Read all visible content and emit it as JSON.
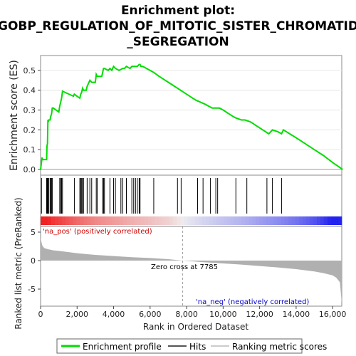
{
  "title_line1": "Enrichment plot:",
  "title_line2": "GOBP_REGULATION_OF_MITOTIC_SISTER_CHROMATID",
  "title_line3": "_SEGREGATION",
  "es_ylabel": "Enrichment score (ES)",
  "rank_ylabel": "Ranked list metric (PreRanked)",
  "xlabel": "Rank in Ordered Dataset",
  "pos_label": "'na_pos' (positively correlated)",
  "neg_label": "'na_neg' (negatively correlated)",
  "zero_cross_label": "Zero cross at 7785",
  "legend": {
    "enrichment": "Enrichment profile",
    "hits": "Hits",
    "ranking": "Ranking metric scores"
  },
  "colors": {
    "enrichment_line": "#00dd00",
    "hits": "#000000",
    "metric_fill": "#b0b0b0",
    "pos_text": "#cc0000",
    "neg_text": "#0000cc"
  },
  "chart_data": {
    "type": "line",
    "x_ticks": [
      "0",
      "2,000",
      "4,000",
      "6,000",
      "8,000",
      "10,000",
      "12,000",
      "14,000",
      "16,000"
    ],
    "x_tick_values": [
      0,
      2000,
      4000,
      6000,
      8000,
      10000,
      12000,
      14000,
      16000
    ],
    "xlim": [
      0,
      16500
    ],
    "es_ylim": [
      0,
      0.55
    ],
    "es_y_ticks": [
      "0.0",
      "0.1",
      "0.2",
      "0.3",
      "0.4",
      "0.5"
    ],
    "es_y_tick_values": [
      0.0,
      0.1,
      0.2,
      0.3,
      0.4,
      0.5
    ],
    "metric_ylim": [
      -8,
      6
    ],
    "metric_y_ticks": [
      "5",
      "0",
      "-5"
    ],
    "metric_y_tick_values": [
      5,
      0,
      -5
    ],
    "zero_cross": 7785,
    "enrichment_profile": {
      "x": [
        0,
        80,
        100,
        330,
        350,
        380,
        400,
        420,
        440,
        520,
        560,
        600,
        640,
        700,
        1000,
        1050,
        1100,
        1150,
        1200,
        1800,
        1850,
        2150,
        2200,
        2250,
        2300,
        2350,
        2500,
        2550,
        2700,
        2800,
        3000,
        3050,
        3100,
        3350,
        3400,
        3450,
        3500,
        3700,
        3800,
        3900,
        4000,
        4100,
        4300,
        4500,
        4600,
        4700,
        4900,
        5000,
        5100,
        5200,
        5300,
        5400,
        5450,
        5500,
        5600,
        5800,
        6000,
        6200,
        6500,
        7000,
        7500,
        8000,
        8500,
        9000,
        9400,
        9600,
        9800,
        10000,
        10500,
        10700,
        11000,
        11200,
        11500,
        12000,
        12500,
        12700,
        13000,
        13200,
        13300,
        14000,
        14500,
        15000,
        15500,
        16000,
        16550
      ],
      "y": [
        0.0,
        0.06,
        0.05,
        0.05,
        0.12,
        0.13,
        0.25,
        0.24,
        0.25,
        0.25,
        0.27,
        0.28,
        0.31,
        0.31,
        0.29,
        0.32,
        0.34,
        0.36,
        0.395,
        0.37,
        0.38,
        0.36,
        0.38,
        0.39,
        0.41,
        0.4,
        0.4,
        0.42,
        0.45,
        0.44,
        0.44,
        0.48,
        0.47,
        0.47,
        0.49,
        0.51,
        0.51,
        0.5,
        0.51,
        0.5,
        0.52,
        0.51,
        0.5,
        0.51,
        0.51,
        0.52,
        0.51,
        0.52,
        0.52,
        0.52,
        0.52,
        0.53,
        0.53,
        0.52,
        0.52,
        0.51,
        0.5,
        0.49,
        0.47,
        0.44,
        0.41,
        0.38,
        0.35,
        0.33,
        0.31,
        0.31,
        0.31,
        0.3,
        0.27,
        0.26,
        0.25,
        0.25,
        0.24,
        0.21,
        0.18,
        0.2,
        0.19,
        0.18,
        0.2,
        0.16,
        0.13,
        0.1,
        0.07,
        0.035,
        0.0
      ]
    },
    "hits": [
      50,
      330,
      350,
      380,
      400,
      420,
      440,
      520,
      560,
      600,
      640,
      1050,
      1100,
      1150,
      1200,
      1850,
      2150,
      2200,
      2250,
      2300,
      2350,
      2550,
      2700,
      2800,
      3050,
      3100,
      3400,
      3450,
      3500,
      3800,
      4000,
      4100,
      4400,
      4500,
      4700,
      5000,
      5100,
      5200,
      5300,
      5400,
      5450,
      6200,
      7500,
      7700,
      8600,
      8900,
      9300,
      9600,
      9700,
      10700,
      11300,
      12400,
      12700,
      13200
    ],
    "metric_profile": {
      "x": [
        0,
        50,
        100,
        200,
        400,
        700,
        1000,
        2000,
        3000,
        4000,
        5000,
        6000,
        7000,
        7785,
        9000,
        10000,
        11000,
        12000,
        13000,
        14000,
        15000,
        15500,
        16000,
        16200,
        16400,
        16500
      ],
      "y": [
        4.0,
        3.2,
        2.6,
        2.2,
        2.0,
        1.8,
        1.7,
        1.3,
        1.0,
        0.8,
        0.6,
        0.45,
        0.25,
        0.0,
        -0.3,
        -0.5,
        -0.7,
        -0.95,
        -1.2,
        -1.5,
        -1.9,
        -2.2,
        -2.6,
        -3.0,
        -3.8,
        -7.5
      ]
    }
  }
}
